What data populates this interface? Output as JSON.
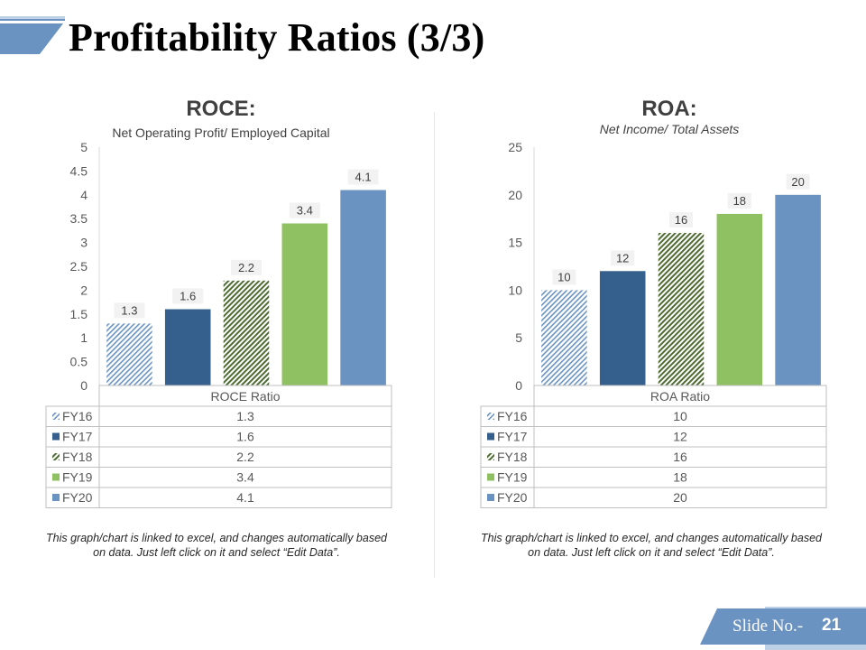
{
  "slide": {
    "title": "Profitability Ratios (3/3)",
    "slide_label": "Slide No.-",
    "slide_number": "21",
    "colors": {
      "accent_blue": "#6b93c1",
      "dark_blue": "#355f8d",
      "green": "#8fc163",
      "dark_green": "#4e6b32"
    }
  },
  "legend": [
    {
      "label": "FY16",
      "pattern": "hatch-blue"
    },
    {
      "label": "FY17",
      "pattern": "solid-dark-blue"
    },
    {
      "label": "FY18",
      "pattern": "hatch-green"
    },
    {
      "label": "FY19",
      "pattern": "solid-green"
    },
    {
      "label": "FY20",
      "pattern": "solid-light-blue"
    }
  ],
  "charts": {
    "roce": {
      "title": "ROCE:",
      "subtitle": "Net Operating Profit/ Employed Capital",
      "note": "This graph/chart is linked to excel, and changes automatically based on data. Just left click on it and select “Edit Data”."
    },
    "roa": {
      "title": "ROA:",
      "subtitle": "Net Income/ Total Assets",
      "note": "This graph/chart is linked to excel, and changes automatically based on data. Just left click on it and select “Edit Data”."
    }
  },
  "chart_data": [
    {
      "type": "bar",
      "title": "ROCE:",
      "subtitle": "Net Operating Profit/ Employed Capital",
      "categories": [
        "ROCE Ratio"
      ],
      "series": [
        {
          "name": "FY16",
          "values": [
            1.3
          ]
        },
        {
          "name": "FY17",
          "values": [
            1.6
          ]
        },
        {
          "name": "FY18",
          "values": [
            2.2
          ]
        },
        {
          "name": "FY19",
          "values": [
            3.4
          ]
        },
        {
          "name": "FY20",
          "values": [
            4.1
          ]
        }
      ],
      "ylim": [
        0,
        5
      ],
      "yticks": [
        "0",
        "0.5",
        "1",
        "1.5",
        "2",
        "2.5",
        "3",
        "3.5",
        "4",
        "4.5",
        "5"
      ],
      "data_labels": [
        "1.3",
        "1.6",
        "2.2",
        "3.4",
        "4.1"
      ],
      "table": [
        [
          "FY16",
          "1.3"
        ],
        [
          "FY17",
          "1.6"
        ],
        [
          "FY18",
          "2.2"
        ],
        [
          "FY19",
          "3.4"
        ],
        [
          "FY20",
          "4.1"
        ]
      ],
      "grid": false,
      "legend": "data-table"
    },
    {
      "type": "bar",
      "title": "ROA:",
      "subtitle": "Net Income/ Total Assets",
      "categories": [
        "ROA Ratio"
      ],
      "series": [
        {
          "name": "FY16",
          "values": [
            10
          ]
        },
        {
          "name": "FY17",
          "values": [
            12
          ]
        },
        {
          "name": "FY18",
          "values": [
            16
          ]
        },
        {
          "name": "FY19",
          "values": [
            18
          ]
        },
        {
          "name": "FY20",
          "values": [
            20
          ]
        }
      ],
      "ylim": [
        0,
        25
      ],
      "yticks": [
        "0",
        "5",
        "10",
        "15",
        "20",
        "25"
      ],
      "data_labels": [
        "10",
        "12",
        "16",
        "18",
        "20"
      ],
      "table": [
        [
          "FY16",
          "10"
        ],
        [
          "FY17",
          "12"
        ],
        [
          "FY18",
          "16"
        ],
        [
          "FY19",
          "18"
        ],
        [
          "FY20",
          "20"
        ]
      ],
      "grid": false,
      "legend": "data-table"
    }
  ]
}
